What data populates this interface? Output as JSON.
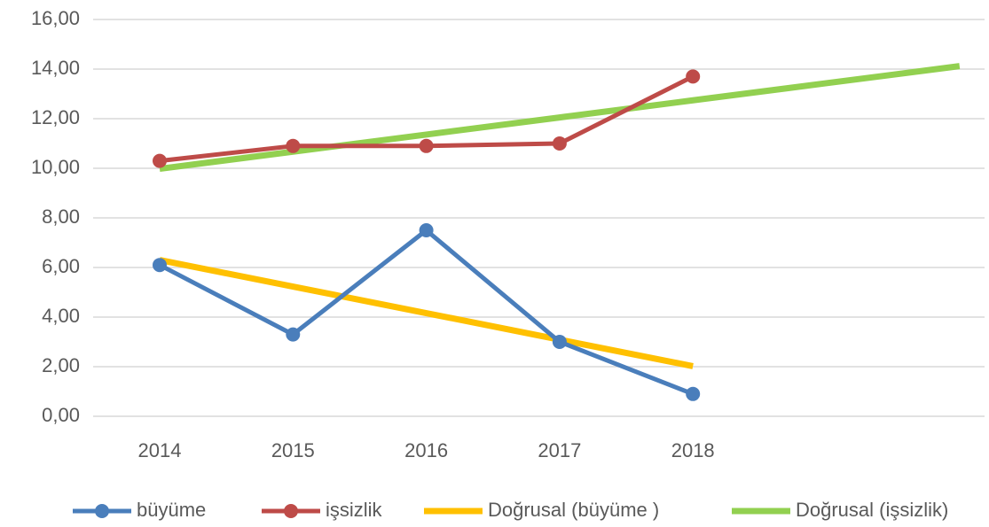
{
  "chart_data": {
    "type": "line",
    "categories": [
      "2014",
      "2015",
      "2016",
      "2017",
      "2018",
      null,
      null
    ],
    "series": [
      {
        "name": "büyüme",
        "color": "#4a7ebb",
        "marker": true,
        "values": [
          6.1,
          3.3,
          7.5,
          3.0,
          0.9,
          null,
          null
        ]
      },
      {
        "name": "işsizlik",
        "color": "#be4b48",
        "marker": true,
        "values": [
          10.3,
          10.9,
          10.9,
          11.0,
          13.7,
          null,
          null
        ]
      },
      {
        "name": "Doğrusal (büyüme )",
        "color": "#ffc000",
        "marker": false,
        "values": [
          6.3,
          5.23,
          4.16,
          3.09,
          2.02,
          null,
          null
        ]
      },
      {
        "name": "Doğrusal (işsizlik)",
        "color": "#92d050",
        "marker": false,
        "values": [
          9.98,
          10.67,
          11.36,
          12.05,
          12.74,
          13.43,
          14.12
        ]
      }
    ],
    "ylim": [
      0,
      16
    ],
    "yticks": [
      {
        "value": 0,
        "label": "0,00"
      },
      {
        "value": 2,
        "label": "2,00"
      },
      {
        "value": 4,
        "label": "4,00"
      },
      {
        "value": 6,
        "label": "6,00"
      },
      {
        "value": 8,
        "label": "8,00"
      },
      {
        "value": 10,
        "label": "10,00"
      },
      {
        "value": 12,
        "label": "12,00"
      },
      {
        "value": 14,
        "label": "14,00"
      },
      {
        "value": 16,
        "label": "16,00"
      }
    ],
    "grid": true,
    "legend": "bottom"
  }
}
